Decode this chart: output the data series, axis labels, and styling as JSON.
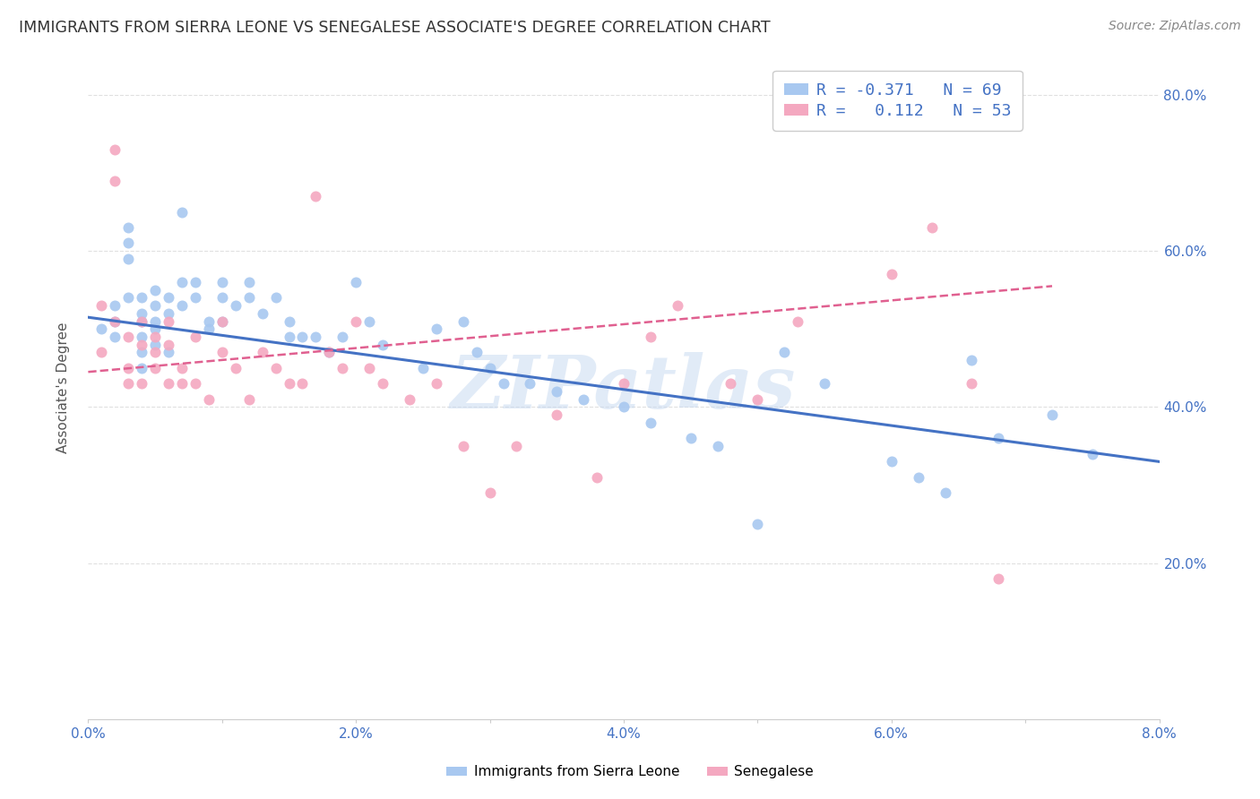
{
  "title": "IMMIGRANTS FROM SIERRA LEONE VS SENEGALESE ASSOCIATE'S DEGREE CORRELATION CHART",
  "source": "Source: ZipAtlas.com",
  "ylabel": "Associate's Degree",
  "xlim": [
    0.0,
    0.08
  ],
  "ylim": [
    0.0,
    0.85
  ],
  "xtick_vals": [
    0.0,
    0.01,
    0.02,
    0.03,
    0.04,
    0.05,
    0.06,
    0.07,
    0.08
  ],
  "xtick_label_vals": [
    0.0,
    0.02,
    0.04,
    0.06,
    0.08
  ],
  "xtick_labels": [
    "0.0%",
    "2.0%",
    "4.0%",
    "6.0%",
    "8.0%"
  ],
  "ytick_vals": [
    0.2,
    0.4,
    0.6,
    0.8
  ],
  "ytick_labels": [
    "20.0%",
    "40.0%",
    "60.0%",
    "80.0%"
  ],
  "blue_color": "#A8C8F0",
  "pink_color": "#F4A8C0",
  "blue_line_color": "#4472C4",
  "pink_line_color": "#E06090",
  "legend_R1": "R = -0.371",
  "legend_N1": "N = 69",
  "legend_R2": "R =   0.112",
  "legend_N2": "N = 53",
  "legend_label1": "Immigrants from Sierra Leone",
  "legend_label2": "Senegalese",
  "watermark": "ZIPatlas",
  "watermark_color": "#C5D8F0",
  "title_color": "#333333",
  "source_color": "#888888",
  "tick_color": "#4472C4",
  "grid_color": "#E0E0E0",
  "blue_scatter_x": [
    0.001,
    0.002,
    0.002,
    0.002,
    0.003,
    0.003,
    0.003,
    0.003,
    0.004,
    0.004,
    0.004,
    0.004,
    0.004,
    0.004,
    0.005,
    0.005,
    0.005,
    0.005,
    0.005,
    0.006,
    0.006,
    0.006,
    0.007,
    0.007,
    0.007,
    0.008,
    0.008,
    0.009,
    0.009,
    0.01,
    0.01,
    0.01,
    0.011,
    0.012,
    0.012,
    0.013,
    0.014,
    0.015,
    0.015,
    0.016,
    0.017,
    0.018,
    0.019,
    0.02,
    0.021,
    0.022,
    0.025,
    0.026,
    0.028,
    0.029,
    0.03,
    0.031,
    0.033,
    0.035,
    0.037,
    0.04,
    0.042,
    0.045,
    0.047,
    0.05,
    0.052,
    0.055,
    0.06,
    0.062,
    0.064,
    0.066,
    0.068,
    0.072,
    0.075
  ],
  "blue_scatter_y": [
    0.5,
    0.53,
    0.51,
    0.49,
    0.63,
    0.61,
    0.59,
    0.54,
    0.54,
    0.52,
    0.51,
    0.49,
    0.47,
    0.45,
    0.55,
    0.53,
    0.51,
    0.5,
    0.48,
    0.54,
    0.52,
    0.47,
    0.65,
    0.56,
    0.53,
    0.56,
    0.54,
    0.51,
    0.5,
    0.56,
    0.54,
    0.51,
    0.53,
    0.56,
    0.54,
    0.52,
    0.54,
    0.51,
    0.49,
    0.49,
    0.49,
    0.47,
    0.49,
    0.56,
    0.51,
    0.48,
    0.45,
    0.5,
    0.51,
    0.47,
    0.45,
    0.43,
    0.43,
    0.42,
    0.41,
    0.4,
    0.38,
    0.36,
    0.35,
    0.25,
    0.47,
    0.43,
    0.33,
    0.31,
    0.29,
    0.46,
    0.36,
    0.39,
    0.34
  ],
  "pink_scatter_x": [
    0.001,
    0.001,
    0.002,
    0.002,
    0.002,
    0.003,
    0.003,
    0.003,
    0.004,
    0.004,
    0.004,
    0.005,
    0.005,
    0.005,
    0.006,
    0.006,
    0.006,
    0.007,
    0.007,
    0.008,
    0.008,
    0.009,
    0.01,
    0.01,
    0.011,
    0.012,
    0.013,
    0.014,
    0.015,
    0.016,
    0.017,
    0.018,
    0.019,
    0.02,
    0.021,
    0.022,
    0.024,
    0.026,
    0.028,
    0.03,
    0.032,
    0.035,
    0.038,
    0.04,
    0.042,
    0.044,
    0.048,
    0.05,
    0.053,
    0.06,
    0.063,
    0.066,
    0.068
  ],
  "pink_scatter_y": [
    0.53,
    0.47,
    0.73,
    0.69,
    0.51,
    0.49,
    0.45,
    0.43,
    0.51,
    0.48,
    0.43,
    0.49,
    0.47,
    0.45,
    0.51,
    0.48,
    0.43,
    0.45,
    0.43,
    0.49,
    0.43,
    0.41,
    0.51,
    0.47,
    0.45,
    0.41,
    0.47,
    0.45,
    0.43,
    0.43,
    0.67,
    0.47,
    0.45,
    0.51,
    0.45,
    0.43,
    0.41,
    0.43,
    0.35,
    0.29,
    0.35,
    0.39,
    0.31,
    0.43,
    0.49,
    0.53,
    0.43,
    0.41,
    0.51,
    0.57,
    0.63,
    0.43,
    0.18
  ],
  "blue_trend_x": [
    0.0,
    0.08
  ],
  "blue_trend_y": [
    0.515,
    0.33
  ],
  "pink_trend_x": [
    0.0,
    0.072
  ],
  "pink_trend_y": [
    0.445,
    0.555
  ]
}
